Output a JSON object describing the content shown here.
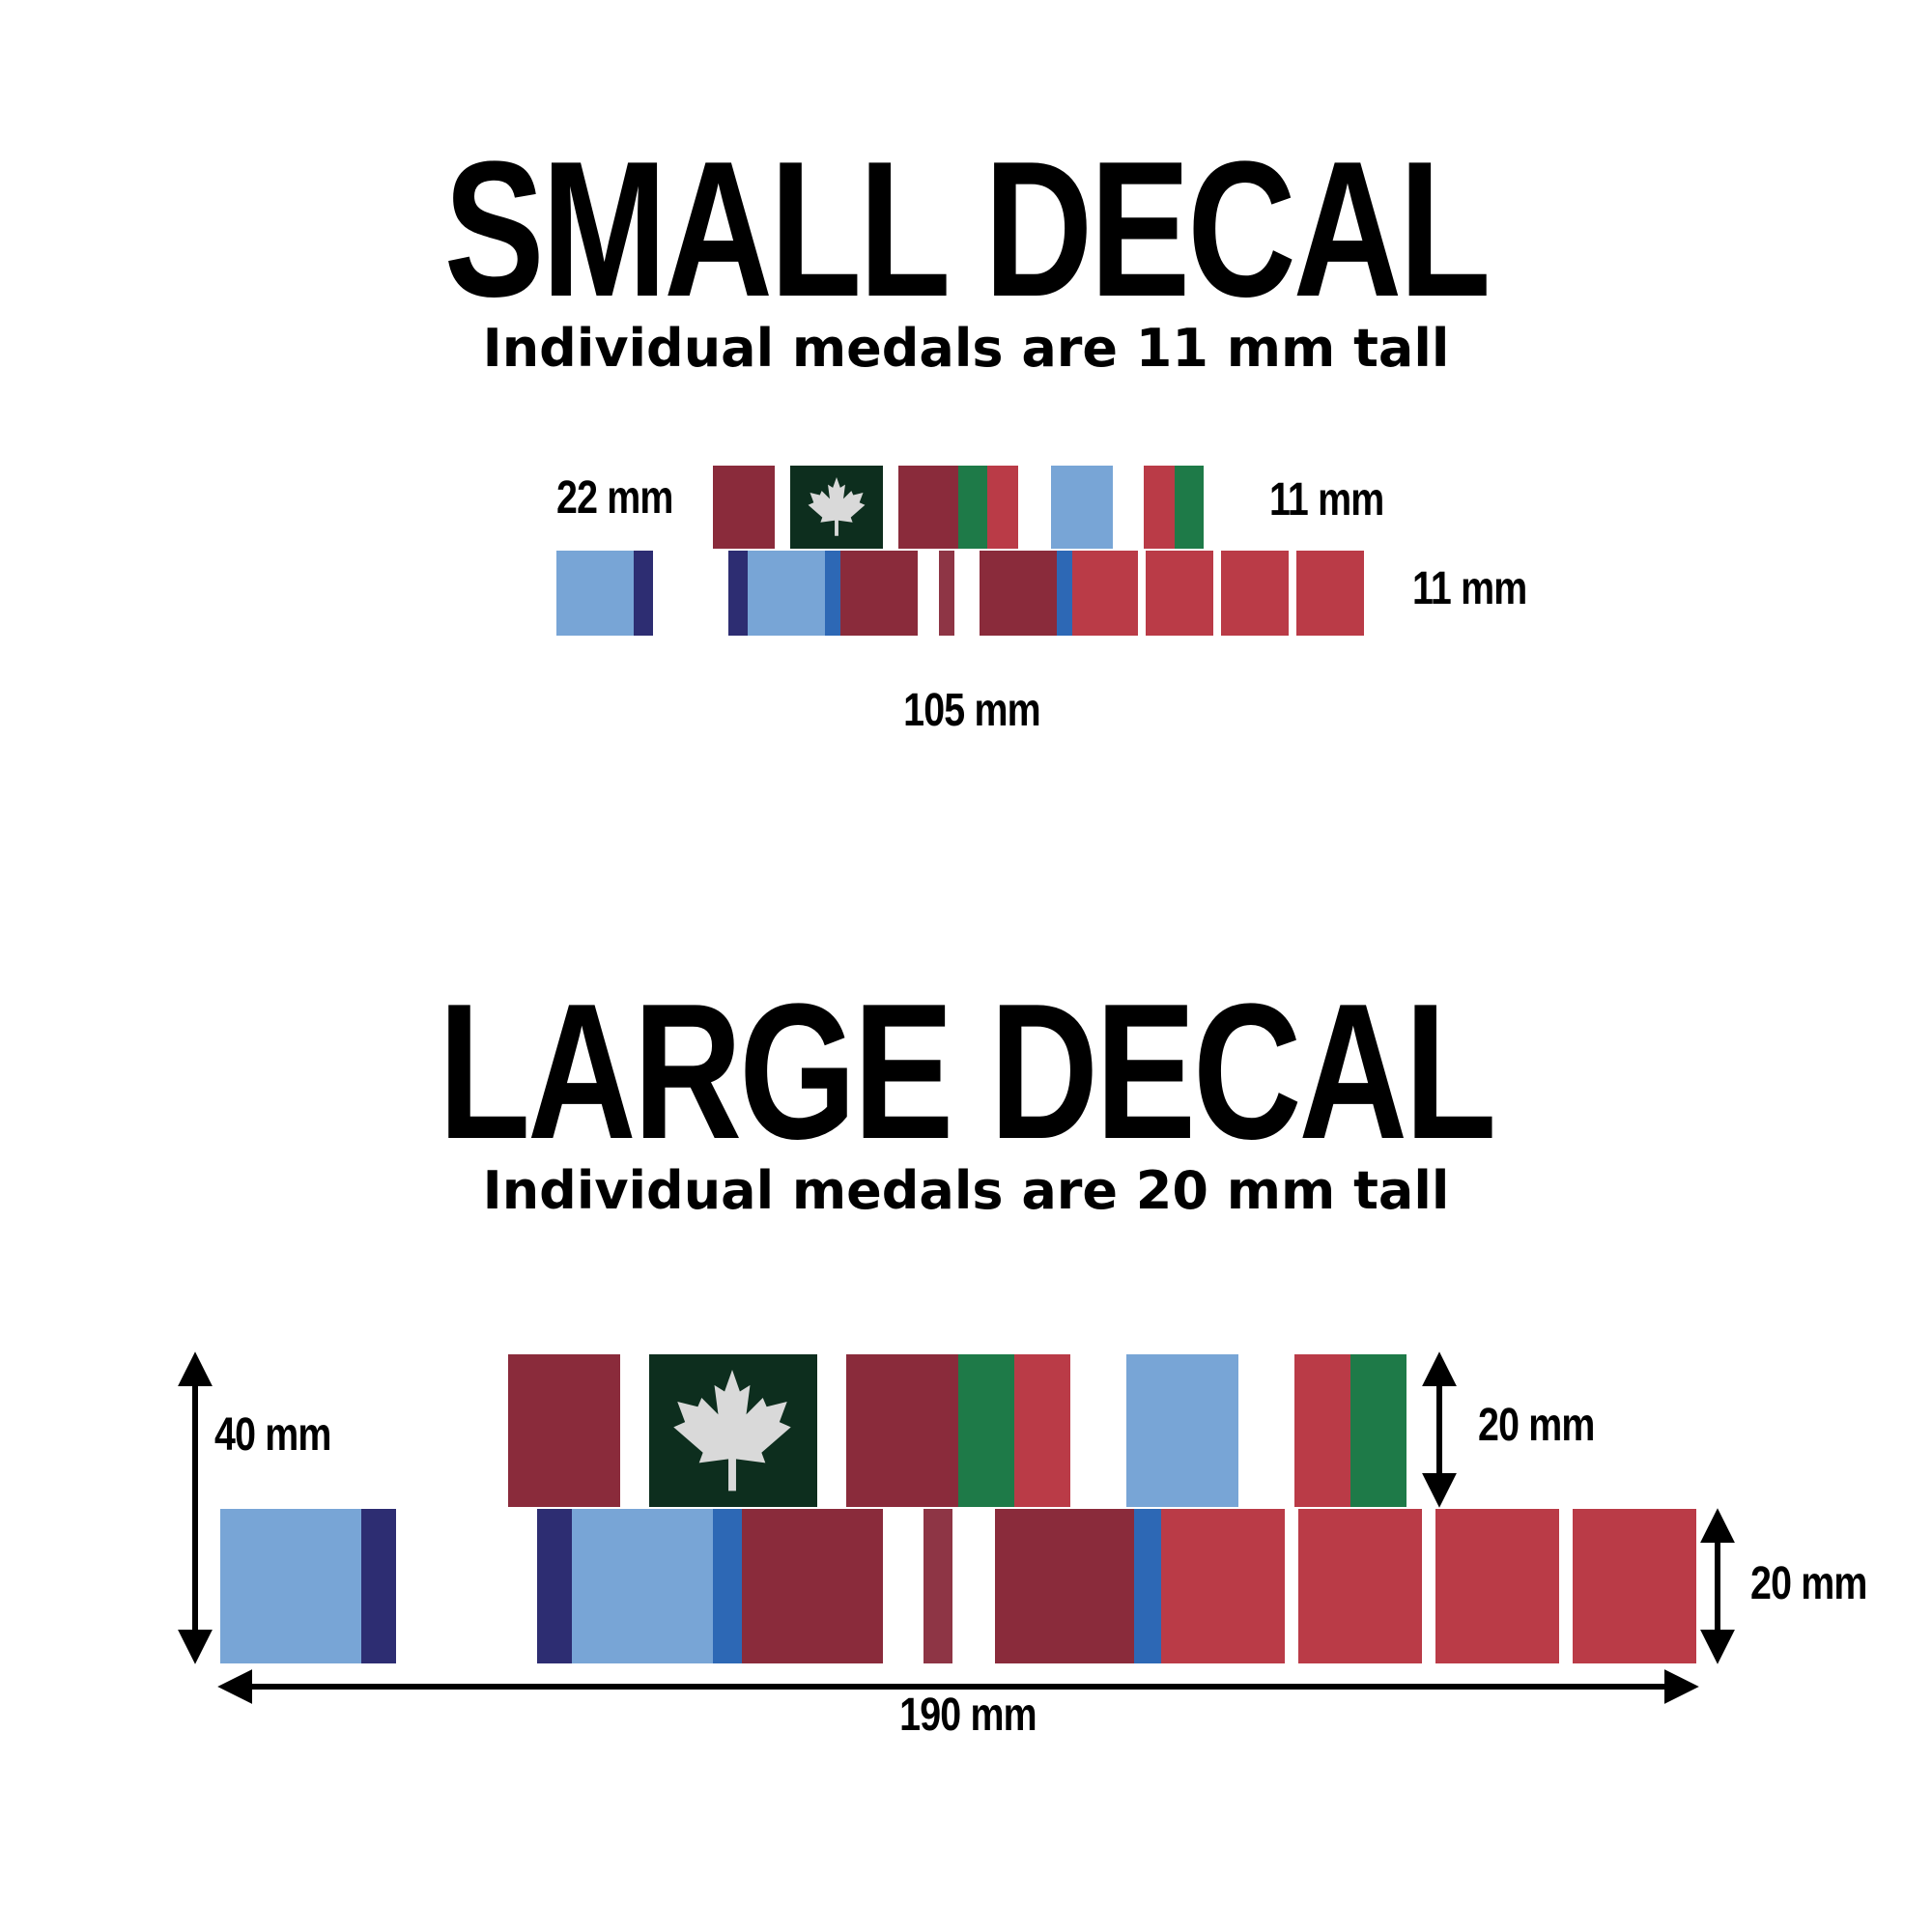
{
  "small": {
    "title": "SMALL DECAL",
    "subtitle": "Individual medals are 11 mm tall",
    "dims": {
      "top_row_height": "22 mm",
      "top_right": "11 mm",
      "bottom_right": "11 mm",
      "width": "105 mm"
    }
  },
  "large": {
    "title": "LARGE DECAL",
    "subtitle": "Individual medals are 20 mm tall",
    "dims": {
      "total_height": "40 mm",
      "top_right": "20 mm",
      "bottom_right": "20 mm",
      "width": "190 mm"
    }
  },
  "colors": {
    "light_blue": "#78a5d6",
    "navy": "#2d2d72",
    "royal_blue": "#2d68b5",
    "maroon": "#8a2b3b",
    "wine": "#8e3545",
    "red": "#ba3b47",
    "green": "#1e7a48",
    "dark_green": "#0d2e1e",
    "leaf_gray": "#d9d9d9",
    "white": "#ffffff"
  },
  "icons": [
    "maple-leaf-icon",
    "double-arrow-icon"
  ]
}
